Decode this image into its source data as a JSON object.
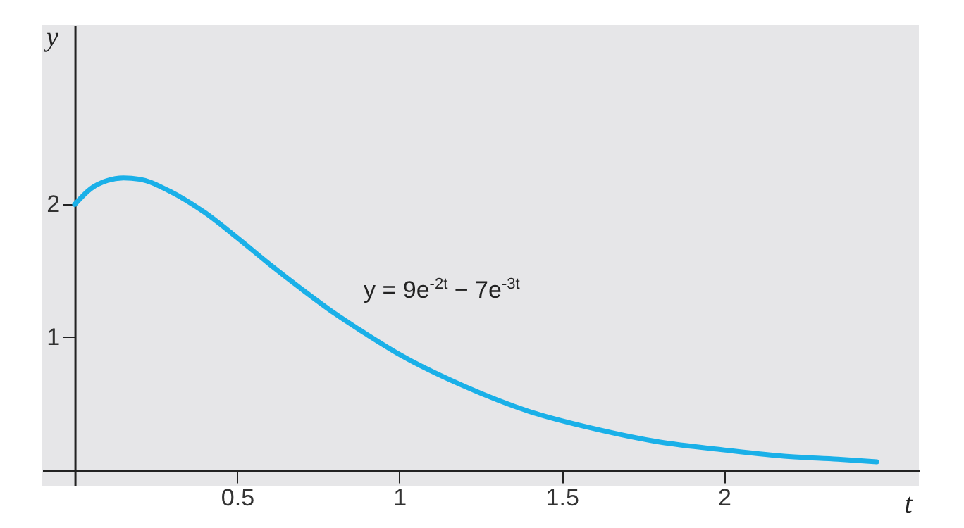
{
  "chart_data": {
    "type": "line",
    "xlabel": "t",
    "ylabel": "y",
    "color": "#1ab0e8",
    "line_style": "solid",
    "x": [
      0,
      0.05,
      0.1,
      0.15,
      0.2,
      0.3,
      0.4,
      0.5,
      0.6,
      0.7,
      0.8,
      0.9,
      1.0,
      1.2,
      1.4,
      1.6,
      1.8,
      2.0,
      2.2,
      2.35,
      2.47
    ],
    "values": [
      2.0,
      2.12,
      2.18,
      2.2,
      2.19,
      2.09,
      1.94,
      1.75,
      1.55,
      1.36,
      1.18,
      1.02,
      0.87,
      0.63,
      0.44,
      0.31,
      0.21,
      0.15,
      0.1,
      0.08,
      0.06
    ],
    "xlim": [
      -0.1,
      2.6
    ],
    "ylim": [
      -0.12,
      3.35
    ],
    "xticks": [
      0.5,
      1,
      1.5,
      2
    ],
    "yticks": [
      1,
      2
    ],
    "annotations": [
      "y = 9e$^{-2t}$ − 7e$^{-3t}$"
    ]
  }
}
